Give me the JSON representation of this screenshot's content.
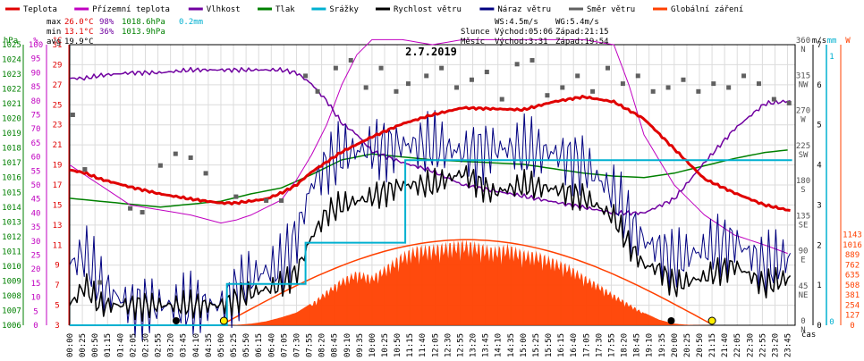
{
  "legend": [
    {
      "label": "Teplota",
      "color": "#e00000"
    },
    {
      "label": "Přízemní teplota",
      "color": "#c000c0"
    },
    {
      "label": "Vlhkost",
      "color": "#7000a0"
    },
    {
      "label": "Tlak",
      "color": "#008000"
    },
    {
      "label": "Srážky",
      "color": "#00b0d0"
    },
    {
      "label": "Rychlost větru",
      "color": "#000000"
    },
    {
      "label": "Náraz větru",
      "color": "#000080"
    },
    {
      "label": "Směr větru",
      "color": "#606060"
    },
    {
      "label": "Globální záření",
      "color": "#ff4000"
    }
  ],
  "stats": {
    "max_label": "max",
    "max_temp": "26.0°C",
    "max_hum": "98%",
    "max_press": "1018.6hPa",
    "max_rain": "0.2mm",
    "min_label": "min",
    "min_temp": "13.1°C",
    "min_hum": "36%",
    "min_press": "1013.9hPa",
    "avg_label": "avg",
    "avg_temp": "19.9°C",
    "ws": "WS:4.5m/s",
    "wg": "WG:5.4m/s",
    "sun_label": "Slunce",
    "sun_rise": "Východ:05:06",
    "sun_set": "Západ:21:15",
    "moon_label": "Měsíc",
    "moon_rise": "Východ:3:31",
    "moon_set": "Západ:19:54"
  },
  "chart_data": {
    "type": "line",
    "title": "2.7.2019",
    "x_axis_label": "čas",
    "x_ticks": [
      "00:00",
      "00:25",
      "00:50",
      "01:15",
      "01:40",
      "02:05",
      "02:30",
      "02:55",
      "03:20",
      "03:45",
      "04:10",
      "04:35",
      "05:00",
      "05:25",
      "05:50",
      "06:15",
      "06:40",
      "07:05",
      "07:30",
      "07:55",
      "08:20",
      "08:45",
      "09:10",
      "09:35",
      "10:00",
      "10:25",
      "10:50",
      "11:15",
      "11:40",
      "12:05",
      "12:30",
      "12:55",
      "13:20",
      "13:45",
      "14:10",
      "14:35",
      "15:00",
      "15:25",
      "15:50",
      "16:15",
      "16:40",
      "17:05",
      "17:30",
      "17:55",
      "18:20",
      "18:45",
      "19:10",
      "19:35",
      "20:00",
      "20:25",
      "20:50",
      "21:15",
      "21:40",
      "22:05",
      "22:30",
      "22:55",
      "23:20",
      "23:45"
    ],
    "axes": {
      "pressure": {
        "unit": "hPa",
        "ticks": [
          "1006",
          "1007",
          "1008",
          "1009",
          "1010",
          "1011",
          "1012",
          "1013",
          "1014",
          "1015",
          "1016",
          "1017",
          "1018",
          "1019",
          "1020",
          "1021",
          "1022",
          "1023",
          "1024",
          "1025"
        ],
        "color": "#008000"
      },
      "humidity": {
        "unit": "%",
        "ticks": [
          "0",
          "5",
          "10",
          "15",
          "20",
          "25",
          "30",
          "35",
          "40",
          "45",
          "50",
          "55",
          "60",
          "65",
          "70",
          "75",
          "80",
          "85",
          "90",
          "95",
          "100"
        ],
        "color": "#c000c0"
      },
      "temperature": {
        "unit": "°C",
        "ticks": [
          "3",
          "5",
          "7",
          "9",
          "11",
          "13",
          "15",
          "17",
          "19",
          "21",
          "23",
          "25",
          "27",
          "29",
          "31"
        ],
        "color": "#e00000"
      },
      "wind_speed": {
        "unit": "m/s",
        "ticks": [
          "0",
          "1",
          "2",
          "3",
          "4",
          "5",
          "6",
          "7"
        ],
        "color": "#000000"
      },
      "rain": {
        "unit": "mm",
        "ticks": [
          "0",
          "1"
        ],
        "color": "#00b0d0"
      },
      "radiation": {
        "unit": "W",
        "ticks": [
          "0",
          "127",
          "254",
          "381",
          "508",
          "635",
          "762",
          "889",
          "1016",
          "1143"
        ],
        "color": "#ff4000"
      },
      "wind_dir": {
        "ticks": [
          {
            "deg": "0",
            "dir": "N"
          },
          {
            "deg": "45",
            "dir": "NE"
          },
          {
            "deg": "90",
            "dir": "E"
          },
          {
            "deg": "135",
            "dir": "SE"
          },
          {
            "deg": "180",
            "dir": "S"
          },
          {
            "deg": "225",
            "dir": "SW"
          },
          {
            "deg": "270",
            "dir": "W"
          },
          {
            "deg": "315",
            "dir": "NW"
          },
          {
            "deg": "360",
            "dir": "N"
          }
        ]
      }
    },
    "series": [
      {
        "name": "Teplota",
        "unit": "°C",
        "x_hours": [
          0,
          0.5,
          1,
          2,
          3,
          4,
          5,
          5.5,
          6,
          6.5,
          7,
          7.5,
          8,
          9,
          10,
          11,
          12,
          13,
          14,
          15,
          16,
          17,
          18,
          19,
          20,
          21,
          22,
          23,
          23.9
        ],
        "values": [
          18.5,
          18.2,
          17.6,
          16.8,
          16.1,
          15.6,
          15.2,
          15.2,
          15.4,
          15.6,
          16.2,
          17.0,
          18.3,
          20.3,
          21.8,
          23.1,
          24.0,
          24.7,
          24.6,
          24.5,
          25.3,
          25.8,
          25.3,
          23.6,
          20.6,
          17.6,
          16.2,
          15.0,
          14.4
        ]
      },
      {
        "name": "Přízemní teplota",
        "unit": "°C",
        "x_hours": [
          0,
          1,
          2,
          3,
          4,
          5,
          5.5,
          6,
          7,
          7.5,
          8,
          8.5,
          9,
          9.5,
          10,
          11,
          12,
          13,
          14,
          15,
          16,
          17,
          18,
          18.5,
          19,
          20,
          21,
          22,
          23,
          23.9
        ],
        "values": [
          19,
          17,
          15,
          14.5,
          14,
          13.2,
          13.5,
          14,
          15.5,
          17.5,
          20,
          23,
          27,
          30,
          31.5,
          31.5,
          31,
          31.5,
          31.5,
          31.5,
          31.5,
          31.5,
          31,
          27,
          22,
          17,
          14,
          12,
          11,
          10
        ]
      },
      {
        "name": "Vlhkost",
        "unit": "%",
        "x_hours": [
          0,
          0.5,
          1,
          2,
          3,
          4,
          5,
          6,
          7,
          7.5,
          8,
          8.5,
          9,
          9.5,
          10,
          11,
          12,
          13,
          14,
          15,
          16,
          17,
          18,
          19,
          20,
          21,
          22,
          23,
          23.9
        ],
        "values": [
          88,
          88,
          89,
          90,
          90,
          91,
          91,
          91,
          91,
          90,
          86,
          80,
          72,
          68,
          62,
          58,
          55,
          50,
          48,
          46,
          44,
          42,
          40,
          40,
          45,
          58,
          70,
          79,
          80
        ]
      },
      {
        "name": "Tlak",
        "unit": "hPa",
        "x_hours": [
          0,
          1,
          2,
          3,
          4,
          5,
          6,
          7,
          8,
          9,
          10,
          11,
          12,
          13,
          14,
          15,
          16,
          17,
          18,
          19,
          20,
          21,
          22,
          23,
          23.9
        ],
        "values": [
          1014.6,
          1014.4,
          1014.2,
          1014.0,
          1014.2,
          1014.4,
          1014.9,
          1015.3,
          1016.2,
          1017.2,
          1017.6,
          1017.4,
          1017.2,
          1017.1,
          1017.0,
          1016.9,
          1016.6,
          1016.3,
          1016.1,
          1016.0,
          1016.3,
          1016.8,
          1017.3,
          1017.7,
          1017.9
        ]
      },
      {
        "name": "Srážky",
        "unit": "mm",
        "x_hours": [
          0,
          3,
          5.2,
          5.2,
          7.8,
          7.8,
          11.1,
          11.1,
          23.9
        ],
        "values": [
          0,
          0,
          0,
          0.05,
          0.05,
          0.1,
          0.1,
          0.2,
          0.2
        ]
      },
      {
        "name": "Rychlost větru",
        "unit": "m/s",
        "x_hours": [
          0,
          0.5,
          1,
          2,
          3,
          4,
          5,
          6,
          7,
          7.5,
          8,
          8.5,
          9,
          10,
          11,
          12,
          13,
          14,
          15,
          16,
          17,
          18,
          18.5,
          19,
          19.5,
          20,
          21,
          22,
          23,
          23.9
        ],
        "values": [
          0.5,
          1,
          0.5,
          0.5,
          0.5,
          0.5,
          0.5,
          0.8,
          1,
          1.3,
          2.2,
          2.8,
          3,
          3.2,
          3.5,
          3.5,
          3.8,
          3.3,
          3.5,
          3.4,
          3.2,
          2.7,
          2,
          1.5,
          1.4,
          1,
          1.2,
          1.5,
          1,
          1.2
        ]
      },
      {
        "name": "Náraz větru",
        "unit": "m/s",
        "x_hours": [
          0,
          0.5,
          1,
          2,
          3,
          4,
          5,
          6,
          7,
          7.5,
          8,
          8.5,
          9,
          10,
          11,
          12,
          13,
          14,
          15,
          16,
          17,
          18,
          18.5,
          19,
          19.5,
          20,
          21,
          22,
          23,
          23.9
        ],
        "values": [
          1.5,
          1.8,
          1,
          0.5,
          0.5,
          0.5,
          0.5,
          1.2,
          1.5,
          2.2,
          3.5,
          4,
          4.3,
          4.4,
          4.5,
          4.5,
          4.3,
          4.4,
          4.4,
          4.3,
          4,
          3.3,
          2.6,
          2.1,
          1.9,
          1.6,
          1.9,
          2.1,
          1.5,
          1.7
        ]
      },
      {
        "name": "Směr větru",
        "unit": "°",
        "x_hours": [
          0.1,
          0.5,
          1,
          2,
          2.4,
          3,
          3.5,
          4,
          4.5,
          5.5,
          6.5,
          7,
          7.8,
          8.2,
          8.8,
          9.3,
          9.8,
          10.3,
          10.8,
          11.2,
          11.8,
          12.3,
          12.8,
          13.3,
          13.8,
          14.3,
          14.8,
          15.3,
          15.8,
          16.3,
          16.8,
          17.3,
          17.8,
          18.3,
          18.8,
          19.3,
          19.8,
          20.3,
          20.8,
          21.3,
          21.8,
          22.3,
          22.8,
          23.3,
          23.8
        ],
        "values": [
          270,
          200,
          55,
          150,
          145,
          205,
          220,
          215,
          195,
          165,
          160,
          160,
          320,
          300,
          330,
          340,
          305,
          330,
          300,
          310,
          320,
          330,
          305,
          315,
          325,
          290,
          335,
          340,
          295,
          305,
          320,
          300,
          330,
          310,
          320,
          300,
          305,
          315,
          300,
          310,
          305,
          320,
          310,
          290,
          285
        ]
      },
      {
        "name": "Globální záření",
        "unit": "W",
        "x_hours": [
          5.2,
          5.5,
          6,
          6.5,
          7,
          7.5,
          8,
          8.5,
          9,
          9.5,
          10,
          10.5,
          11,
          11.5,
          12,
          12.5,
          13,
          13.5,
          14,
          14.5,
          15,
          15.5,
          16,
          16.5,
          17,
          17.5,
          18,
          18.5,
          19,
          19.5,
          20,
          20.5,
          21,
          21.2
        ],
        "values": [
          0,
          5,
          20,
          50,
          100,
          160,
          280,
          450,
          600,
          700,
          640,
          780,
          930,
          1020,
          1030,
          1060,
          1090,
          1060,
          1000,
          1040,
          960,
          940,
          860,
          780,
          650,
          530,
          400,
          280,
          160,
          70,
          20,
          5,
          1,
          0
        ]
      }
    ]
  }
}
